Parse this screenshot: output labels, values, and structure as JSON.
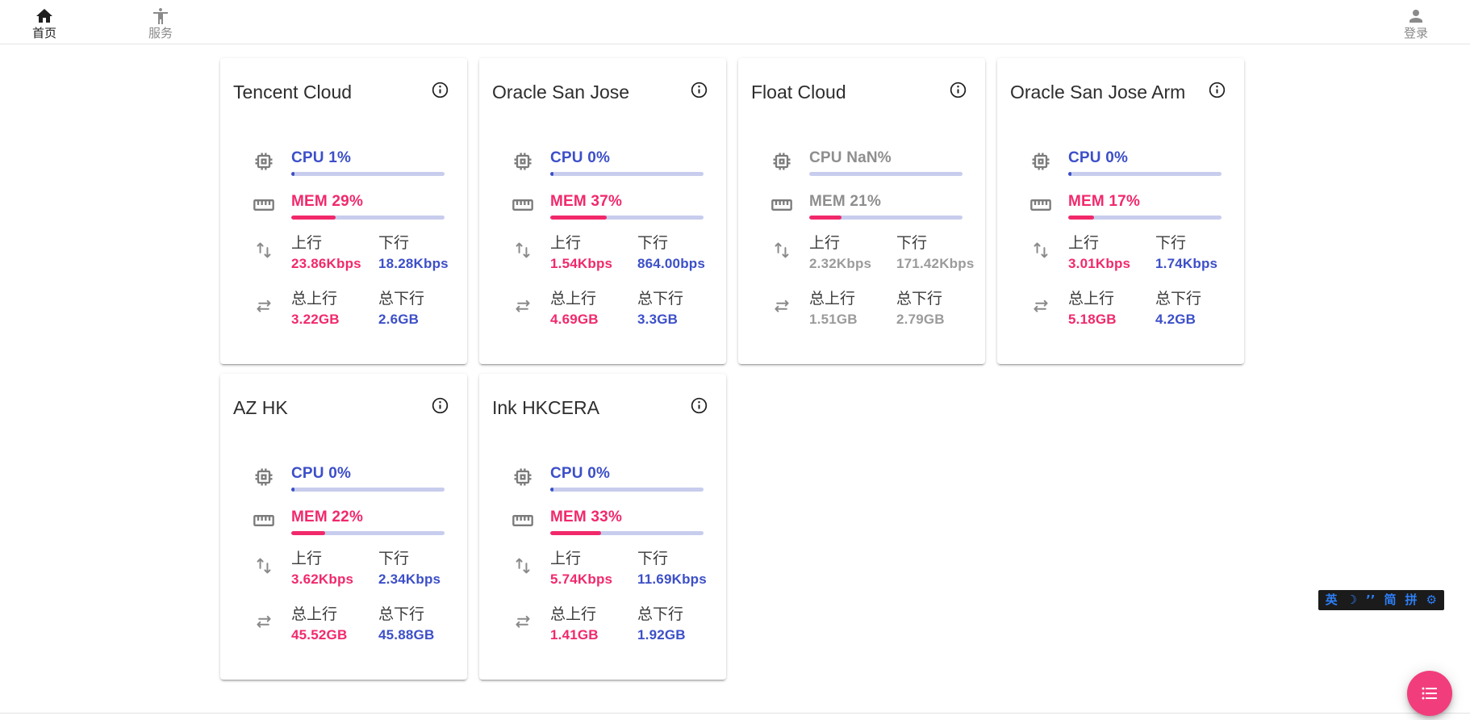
{
  "navbar": {
    "items": [
      {
        "label": "首页",
        "icon": "home-icon",
        "active": true
      },
      {
        "label": "服务",
        "icon": "accessibility-icon",
        "active": false
      }
    ],
    "login": {
      "label": "登录",
      "icon": "person-icon"
    }
  },
  "labels": {
    "up": "上行",
    "down": "下行",
    "total_up": "总上行",
    "total_down": "总下行"
  },
  "cards": [
    {
      "title": "Tencent Cloud",
      "cpu_label": "CPU 1%",
      "cpu_percent": 1,
      "mem_label": "MEM 29%",
      "mem_percent": 29,
      "up_value": "23.86Kbps",
      "down_value": "18.28Kbps",
      "total_up_value": "3.22GB",
      "total_down_value": "2.6GB",
      "muted": false
    },
    {
      "title": "Oracle San Jose",
      "cpu_label": "CPU 0%",
      "cpu_percent": 0,
      "mem_label": "MEM 37%",
      "mem_percent": 37,
      "up_value": "1.54Kbps",
      "down_value": "864.00bps",
      "total_up_value": "4.69GB",
      "total_down_value": "3.3GB",
      "muted": false
    },
    {
      "title": "Float Cloud",
      "cpu_label": "CPU NaN%",
      "cpu_percent": null,
      "mem_label": "MEM 21%",
      "mem_percent": 21,
      "up_value": "2.32Kbps",
      "down_value": "171.42Kbps",
      "total_up_value": "1.51GB",
      "total_down_value": "2.79GB",
      "muted": true
    },
    {
      "title": "Oracle San Jose Arm",
      "cpu_label": "CPU 0%",
      "cpu_percent": 0,
      "mem_label": "MEM 17%",
      "mem_percent": 17,
      "up_value": "3.01Kbps",
      "down_value": "1.74Kbps",
      "total_up_value": "5.18GB",
      "total_down_value": "4.2GB",
      "muted": false
    },
    {
      "title": "AZ HK",
      "cpu_label": "CPU 0%",
      "cpu_percent": 0,
      "mem_label": "MEM 22%",
      "mem_percent": 22,
      "up_value": "3.62Kbps",
      "down_value": "2.34Kbps",
      "total_up_value": "45.52GB",
      "total_down_value": "45.88GB",
      "muted": false
    },
    {
      "title": "Ink HKCERA",
      "cpu_label": "CPU 0%",
      "cpu_percent": 0,
      "mem_label": "MEM 33%",
      "mem_percent": 33,
      "up_value": "5.74Kbps",
      "down_value": "11.69Kbps",
      "total_up_value": "1.41GB",
      "total_down_value": "1.92GB",
      "muted": false
    }
  ],
  "ime_toolbar": {
    "items": [
      "英",
      "☽",
      "’’",
      "简",
      "拼",
      "⚙"
    ]
  },
  "colors": {
    "accent_blue": "#3c4fc8",
    "accent_pink": "#f1296b",
    "progress_track": "#c8cdee",
    "fab_pink": "#f23d7c",
    "ime_blue": "#2d7ff7"
  }
}
